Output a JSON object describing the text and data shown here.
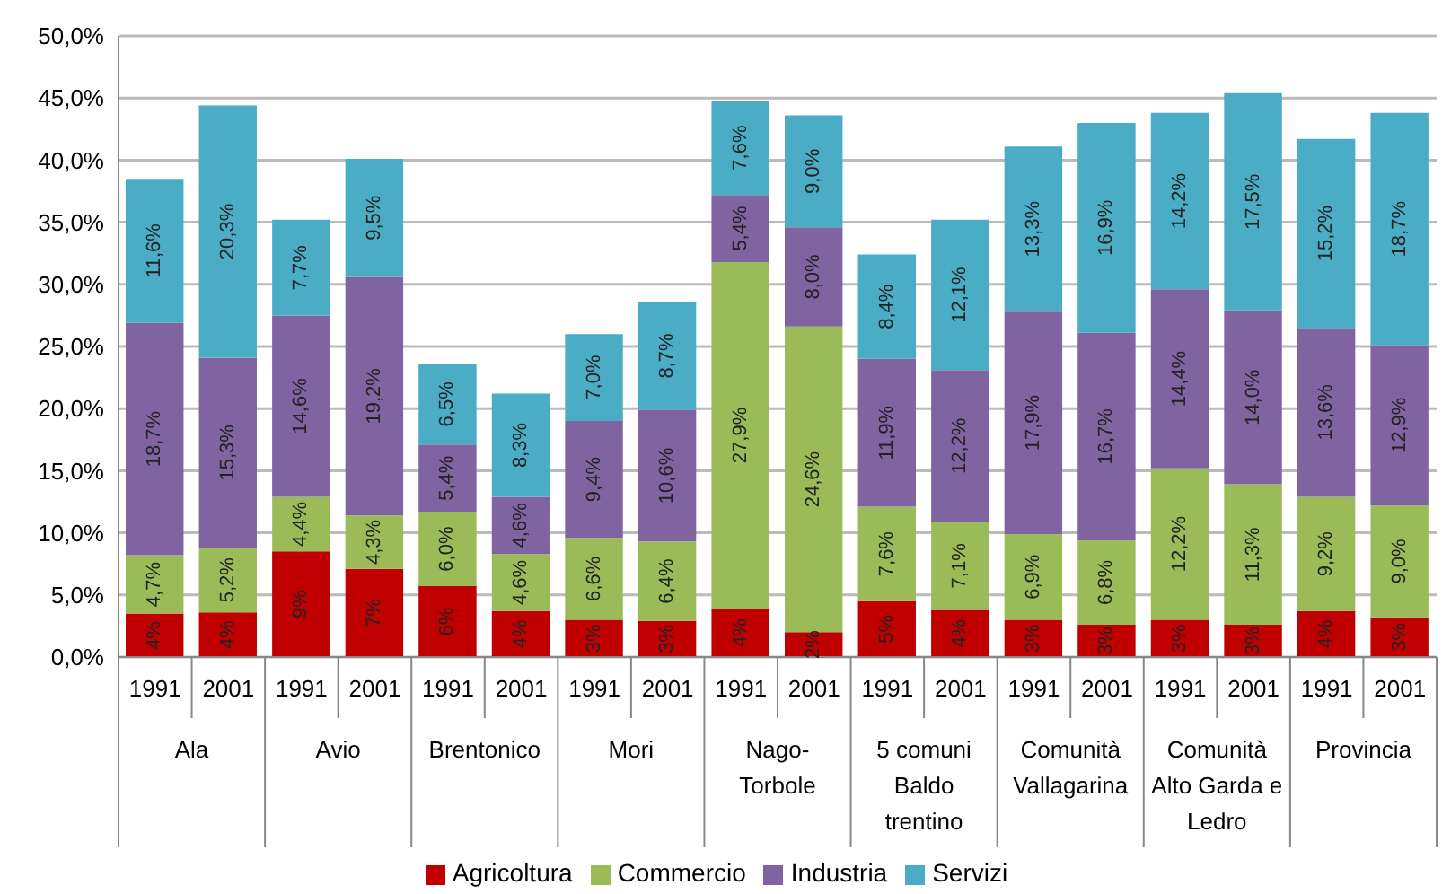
{
  "chart_data": {
    "type": "bar",
    "stacked": true,
    "categories": [
      "1991",
      "2001",
      "1991",
      "2001",
      "1991",
      "2001",
      "1991",
      "2001",
      "1991",
      "2001",
      "1991",
      "2001",
      "1991",
      "2001",
      "1991",
      "2001",
      "1991",
      "2001"
    ],
    "annotations": [
      "Ala",
      "Avio",
      "Brentonico",
      "Mori",
      "Nago-Torbole",
      "5 comuni Baldo trentino",
      "Comunità Vallagarina",
      "Comunità Alto Garda e Ledro",
      "Provincia"
    ],
    "series": [
      {
        "name": "Agricoltura",
        "color": "#c00000",
        "values": [
          3.5,
          3.6,
          8.5,
          7.1,
          5.7,
          3.7,
          3.0,
          2.9,
          3.9,
          2.0,
          4.5,
          3.8,
          3.0,
          2.6,
          3.0,
          2.6,
          3.7,
          3.2
        ],
        "value_labels": [
          "4%",
          "4%",
          "9%",
          "7%",
          "6%",
          "4%",
          "3%",
          "3%",
          "4%",
          "2%",
          "5%",
          "4%",
          "3%",
          "3%",
          "3%",
          "3%",
          "4%",
          "3%"
        ]
      },
      {
        "name": "Commercio",
        "color": "#9bbb59",
        "values": [
          4.7,
          5.2,
          4.4,
          4.3,
          6.0,
          4.6,
          6.6,
          6.4,
          27.9,
          24.6,
          7.6,
          7.1,
          6.9,
          6.8,
          12.2,
          11.3,
          9.2,
          9.0
        ],
        "value_labels": [
          "4,7%",
          "5,2%",
          "4,4%",
          "4,3%",
          "6,0%",
          "4,6%",
          "6,6%",
          "6,4%",
          "27,9%",
          "24,6%",
          "7,6%",
          "7,1%",
          "6,9%",
          "6,8%",
          "12,2%",
          "11,3%",
          "9,2%",
          "9,0%"
        ]
      },
      {
        "name": "Industria",
        "color": "#8064a2",
        "values": [
          18.7,
          15.3,
          14.6,
          19.2,
          5.4,
          4.6,
          9.4,
          10.6,
          5.4,
          8.0,
          11.9,
          12.2,
          17.9,
          16.7,
          14.4,
          14.0,
          13.6,
          12.9
        ],
        "value_labels": [
          "18,7%",
          "15,3%",
          "14,6%",
          "19,2%",
          "5,4%",
          "4,6%",
          "9,4%",
          "10,6%",
          "5,4%",
          "8,0%",
          "11,9%",
          "12,2%",
          "17,9%",
          "16,7%",
          "14,4%",
          "14,0%",
          "13,6%",
          "12,9%"
        ]
      },
      {
        "name": "Servizi",
        "color": "#4bacc6",
        "values": [
          11.6,
          20.3,
          7.7,
          9.5,
          6.5,
          8.3,
          7.0,
          8.7,
          7.6,
          9.0,
          8.4,
          12.1,
          13.3,
          16.9,
          14.2,
          17.5,
          15.2,
          18.7
        ],
        "value_labels": [
          "11,6%",
          "20,3%",
          "7,7%",
          "9,5%",
          "6,5%",
          "8,3%",
          "7,0%",
          "8,7%",
          "7,6%",
          "9,0%",
          "8,4%",
          "12,1%",
          "13,3%",
          "16,9%",
          "14,2%",
          "17,5%",
          "15,2%",
          "18,7%"
        ]
      }
    ],
    "ylim": [
      0,
      50
    ],
    "yticks": [
      {
        "value": 0,
        "label": "0,0%"
      },
      {
        "value": 5,
        "label": "5,0%"
      },
      {
        "value": 10,
        "label": "10,0%"
      },
      {
        "value": 15,
        "label": "15,0%"
      },
      {
        "value": 20,
        "label": "20,0%"
      },
      {
        "value": 25,
        "label": "25,0%"
      },
      {
        "value": 30,
        "label": "30,0%"
      },
      {
        "value": 35,
        "label": "35,0%"
      },
      {
        "value": 40,
        "label": "40,0%"
      },
      {
        "value": 45,
        "label": "45,0%"
      },
      {
        "value": 50,
        "label": "50,0%"
      }
    ],
    "grid": "y",
    "legend": "bottom"
  }
}
